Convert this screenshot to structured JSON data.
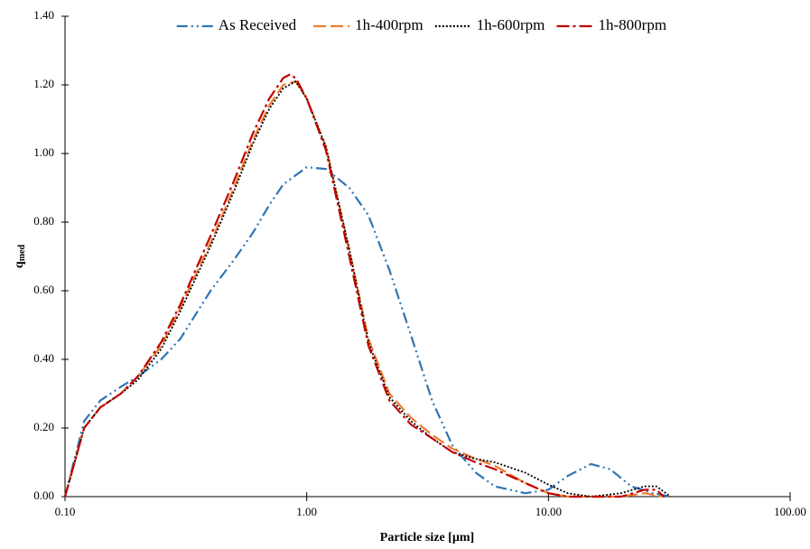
{
  "chart_data": {
    "type": "line",
    "x_label": "Particle size [µm]",
    "y_label": "q",
    "y_label_sub": "med",
    "xlog": true,
    "xlim": [
      0.1,
      100
    ],
    "xticks": [
      {
        "value": 0.1,
        "label": "0.10"
      },
      {
        "value": 1,
        "label": "1.00"
      },
      {
        "value": 10,
        "label": "10.00"
      },
      {
        "value": 100,
        "label": "100.00"
      }
    ],
    "ylim": [
      0,
      1.4
    ],
    "yticks": [
      {
        "value": 0,
        "label": "0.00"
      },
      {
        "value": 0.2,
        "label": "0.20"
      },
      {
        "value": 0.4,
        "label": "0.40"
      },
      {
        "value": 0.6,
        "label": "0.60"
      },
      {
        "value": 0.8,
        "label": "0.80"
      },
      {
        "value": 1.0,
        "label": "1.00"
      },
      {
        "value": 1.2,
        "label": "1.20"
      },
      {
        "value": 1.4,
        "label": "1.40"
      }
    ],
    "grid": false,
    "legend": "top",
    "series": [
      {
        "name": "As Received",
        "color": "#2e75b6",
        "dash": "dash-dot-dot",
        "x": [
          0.1,
          0.12,
          0.14,
          0.17,
          0.2,
          0.25,
          0.3,
          0.4,
          0.5,
          0.6,
          0.7,
          0.8,
          1.0,
          1.2,
          1.5,
          1.8,
          2.2,
          2.7,
          3.3,
          4,
          5,
          6,
          8,
          10,
          12,
          15,
          18,
          22,
          27,
          32
        ],
        "values": [
          0,
          0.22,
          0.28,
          0.32,
          0.35,
          0.4,
          0.46,
          0.6,
          0.69,
          0.77,
          0.85,
          0.91,
          0.96,
          0.955,
          0.9,
          0.82,
          0.66,
          0.47,
          0.28,
          0.15,
          0.07,
          0.03,
          0.01,
          0.02,
          0.06,
          0.095,
          0.08,
          0.03,
          0.01,
          0
        ]
      },
      {
        "name": "1h-400rpm",
        "color": "#ed7d31",
        "dash": "dash",
        "x": [
          0.1,
          0.12,
          0.14,
          0.17,
          0.2,
          0.25,
          0.3,
          0.4,
          0.5,
          0.6,
          0.7,
          0.8,
          0.9,
          1.0,
          1.2,
          1.5,
          1.8,
          2.2,
          2.7,
          3.3,
          4,
          5,
          6,
          8,
          10,
          12,
          20,
          25,
          30
        ],
        "values": [
          0,
          0.2,
          0.26,
          0.3,
          0.35,
          0.44,
          0.55,
          0.74,
          0.9,
          1.04,
          1.14,
          1.2,
          1.21,
          1.16,
          1.02,
          0.72,
          0.46,
          0.3,
          0.23,
          0.18,
          0.14,
          0.11,
          0.09,
          0.04,
          0.01,
          0,
          0,
          0.01,
          0
        ]
      },
      {
        "name": "1h-600rpm",
        "color": "#000000",
        "dash": "dot",
        "x": [
          0.1,
          0.12,
          0.14,
          0.17,
          0.2,
          0.25,
          0.3,
          0.4,
          0.5,
          0.6,
          0.7,
          0.8,
          0.9,
          1.0,
          1.2,
          1.5,
          1.8,
          2.2,
          2.7,
          3.3,
          4,
          5,
          6,
          8,
          10,
          12,
          15,
          20,
          25,
          28,
          32
        ],
        "values": [
          0,
          0.2,
          0.26,
          0.3,
          0.34,
          0.43,
          0.54,
          0.73,
          0.89,
          1.03,
          1.13,
          1.19,
          1.21,
          1.16,
          1.02,
          0.72,
          0.45,
          0.29,
          0.22,
          0.17,
          0.13,
          0.11,
          0.1,
          0.07,
          0.035,
          0.01,
          0,
          0.01,
          0.03,
          0.03,
          0
        ]
      },
      {
        "name": "1h-800rpm",
        "color": "#c00000",
        "dash": "dash-dot",
        "x": [
          0.1,
          0.12,
          0.14,
          0.17,
          0.2,
          0.25,
          0.3,
          0.4,
          0.5,
          0.6,
          0.7,
          0.8,
          0.85,
          0.9,
          1.0,
          1.2,
          1.5,
          1.8,
          2.2,
          2.7,
          3.3,
          4,
          5,
          6,
          8,
          10,
          12,
          20,
          25,
          28,
          30
        ],
        "values": [
          0,
          0.2,
          0.26,
          0.3,
          0.35,
          0.45,
          0.56,
          0.76,
          0.92,
          1.06,
          1.16,
          1.22,
          1.23,
          1.22,
          1.16,
          1.01,
          0.7,
          0.44,
          0.28,
          0.21,
          0.17,
          0.13,
          0.1,
          0.08,
          0.04,
          0.01,
          0,
          0,
          0.02,
          0.02,
          0
        ]
      }
    ]
  }
}
